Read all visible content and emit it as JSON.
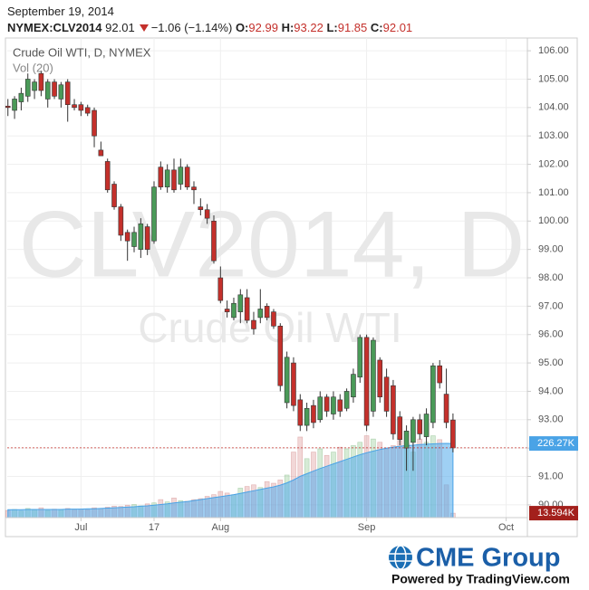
{
  "chart_data": {
    "type": "candlestick",
    "title": "Crude Oil WTI, D, NYMEX",
    "date": "September 19, 2014",
    "symbol": "NYMEX:CLV2014",
    "change_text": "−1.06 (−1.14%)",
    "ohlc_labels": [
      "O:",
      "H:",
      "L:",
      "C:"
    ],
    "watermark": "CLV2014, D",
    "watermark_subtitle": "Crude Oil WTI",
    "x": [
      0,
      1,
      2,
      3,
      4,
      5,
      6,
      7,
      8,
      9,
      10,
      11,
      12,
      13,
      14,
      15,
      16,
      17,
      18,
      19,
      20,
      21,
      22,
      23,
      24,
      25,
      26,
      27,
      28,
      29,
      30,
      31,
      32,
      33,
      34,
      35,
      36,
      37,
      38,
      39,
      40,
      41,
      42,
      43,
      44,
      45,
      46,
      47,
      48,
      49,
      50,
      51,
      52,
      53,
      54,
      55,
      56,
      57,
      58,
      59,
      60,
      61,
      62,
      63,
      64,
      65,
      66,
      67
    ],
    "open": [
      104.05,
      103.9,
      104.2,
      104.4,
      104.6,
      105.2,
      104.3,
      104.9,
      104.3,
      104.9,
      104.1,
      104.1,
      104.0,
      103.9,
      102.5,
      102.1,
      101.3,
      100.5,
      99.6,
      99.1,
      99.0,
      99.8,
      99.3,
      101.9,
      101.2,
      101.8,
      101.3,
      101.9,
      101.2,
      100.5,
      100.4,
      100.0,
      98.0,
      96.9,
      96.6,
      96.8,
      97.3,
      96.5,
      96.6,
      97.0,
      96.8,
      96.3,
      93.6,
      95.0,
      93.7,
      92.8,
      93.5,
      93.0,
      93.8,
      93.2,
      93.7,
      93.4,
      93.8,
      94.5,
      95.9,
      93.3,
      95.1,
      94.5,
      94.2,
      93.1,
      92.0,
      92.2,
      93.0,
      92.4,
      92.9,
      94.9,
      93.9,
      92.99
    ],
    "high": [
      104.3,
      104.4,
      104.7,
      105.2,
      105.0,
      105.3,
      105.0,
      105.0,
      104.9,
      105.0,
      104.3,
      104.2,
      104.1,
      104.0,
      102.8,
      102.2,
      101.4,
      100.6,
      99.7,
      99.8,
      100.1,
      99.9,
      101.4,
      102.1,
      102.0,
      102.2,
      102.2,
      102.0,
      101.4,
      100.8,
      100.6,
      100.2,
      98.4,
      97.2,
      97.3,
      97.6,
      97.6,
      96.8,
      97.6,
      97.1,
      96.9,
      96.4,
      95.4,
      95.2,
      93.9,
      93.6,
      93.7,
      94.0,
      93.9,
      94.0,
      93.9,
      94.1,
      94.8,
      96.0,
      96.0,
      95.9,
      95.2,
      94.8,
      94.4,
      93.3,
      92.8,
      93.1,
      93.2,
      93.4,
      95.0,
      95.1,
      94.8,
      93.22
    ],
    "low": [
      103.7,
      103.6,
      103.9,
      104.2,
      104.3,
      104.4,
      104.0,
      104.3,
      104.0,
      103.5,
      103.9,
      103.7,
      103.7,
      102.6,
      102.3,
      101.0,
      100.4,
      99.3,
      98.6,
      98.9,
      98.7,
      98.8,
      99.2,
      101.1,
      101.0,
      101.0,
      101.1,
      101.1,
      100.6,
      100.2,
      99.9,
      98.5,
      97.1,
      96.6,
      96.5,
      96.4,
      96.4,
      96.0,
      96.4,
      96.5,
      96.2,
      94.0,
      93.4,
      93.3,
      92.6,
      92.6,
      92.7,
      92.9,
      93.1,
      93.0,
      93.1,
      93.3,
      93.6,
      94.3,
      92.6,
      93.1,
      93.6,
      93.1,
      92.3,
      92.1,
      91.2,
      91.2,
      92.3,
      92.1,
      92.7,
      94.1,
      92.7,
      91.85
    ],
    "close": [
      104.0,
      104.3,
      104.5,
      105.0,
      104.9,
      104.6,
      104.9,
      104.4,
      104.8,
      104.1,
      104.0,
      103.9,
      103.8,
      103.0,
      102.3,
      101.1,
      100.5,
      99.5,
      99.3,
      99.6,
      99.9,
      99.0,
      101.2,
      101.2,
      101.8,
      101.1,
      101.9,
      101.2,
      101.1,
      100.4,
      100.1,
      98.6,
      97.2,
      96.8,
      97.1,
      97.4,
      96.5,
      96.2,
      96.9,
      96.6,
      96.3,
      94.2,
      95.2,
      93.5,
      92.8,
      93.4,
      92.9,
      93.8,
      93.3,
      93.8,
      93.3,
      94.0,
      94.6,
      95.9,
      92.8,
      95.8,
      93.8,
      93.3,
      92.5,
      92.3,
      92.6,
      93.0,
      92.5,
      93.2,
      94.9,
      94.3,
      92.9,
      92.01
    ],
    "up_color": "#4a9a58",
    "down_color": "#c4302b",
    "xlim": [
      -0.1,
      78.2
    ],
    "xticks": [
      {
        "value": 11,
        "label": "Jul"
      },
      {
        "value": 22,
        "label": "17"
      },
      {
        "value": 32,
        "label": "Aug"
      },
      {
        "value": 54,
        "label": "Sep"
      },
      {
        "value": 75,
        "label": "Oct"
      }
    ],
    "ylim": [
      89.55,
      106.45
    ],
    "yticks": [
      {
        "value": 90,
        "label": "90.00"
      },
      {
        "value": 91,
        "label": "91.00"
      },
      {
        "value": 92,
        "label": "92.00"
      },
      {
        "value": 93,
        "label": "93.00"
      },
      {
        "value": 94,
        "label": "94.00"
      },
      {
        "value": 95,
        "label": "95.00"
      },
      {
        "value": 96,
        "label": "96.00"
      },
      {
        "value": 97,
        "label": "97.00"
      },
      {
        "value": 98,
        "label": "98.00"
      },
      {
        "value": 99,
        "label": "99.00"
      },
      {
        "value": 100,
        "label": "100.00"
      },
      {
        "value": 101,
        "label": "101.00"
      },
      {
        "value": 102,
        "label": "102.00"
      },
      {
        "value": 103,
        "label": "103.00"
      },
      {
        "value": 104,
        "label": "104.00"
      },
      {
        "value": 105,
        "label": "105.00"
      },
      {
        "value": 106,
        "label": "106.00"
      }
    ],
    "grid": true,
    "volume": {
      "name": "Vol (20)",
      "ylim": [
        0,
        1464
      ],
      "values": [
        22,
        25,
        20,
        28,
        24,
        30,
        22,
        26,
        24,
        28,
        25,
        26,
        24,
        30,
        28,
        32,
        35,
        34,
        38,
        40,
        36,
        42,
        45,
        55,
        48,
        60,
        52,
        50,
        55,
        58,
        65,
        70,
        80,
        75,
        70,
        90,
        95,
        100,
        92,
        110,
        105,
        115,
        130,
        200,
        246,
        180,
        200,
        210,
        190,
        200,
        215,
        210,
        220,
        230,
        250,
        240,
        230,
        210,
        220,
        235,
        210,
        200,
        240,
        230,
        250,
        238,
        100,
        13.594
      ],
      "value_labels": [
        null,
        null,
        null,
        null,
        null,
        null,
        null,
        null,
        null,
        null,
        null,
        null,
        null,
        null,
        null,
        null,
        null,
        null,
        null,
        null,
        null,
        null,
        null,
        null,
        null,
        null,
        null,
        null,
        null,
        null,
        null,
        null,
        null,
        null,
        null,
        null,
        null,
        null,
        null,
        null,
        null,
        null,
        null,
        null,
        null,
        null,
        null,
        null,
        null,
        null,
        null,
        null,
        null,
        null,
        null,
        null,
        null,
        null,
        null,
        null,
        null,
        null,
        null,
        null,
        null,
        null,
        null,
        "13.594K"
      ],
      "ma_values": [
        24,
        24,
        24,
        25,
        25,
        25,
        25,
        25,
        25,
        26,
        26,
        26,
        27,
        27,
        28,
        29,
        30,
        31,
        32,
        33,
        35,
        36,
        38,
        40,
        42,
        45,
        47,
        49,
        52,
        55,
        58,
        61,
        64,
        67,
        70,
        74,
        78,
        82,
        86,
        90,
        94,
        99,
        106,
        115,
        126,
        134,
        142,
        150,
        157,
        164,
        171,
        178,
        185,
        192,
        198,
        203,
        208,
        212,
        215,
        218,
        220,
        221,
        223,
        224,
        225,
        226,
        226.5,
        226.27
      ],
      "ma_value_labels": [
        null,
        null,
        null,
        null,
        null,
        null,
        null,
        null,
        null,
        null,
        null,
        null,
        null,
        null,
        null,
        null,
        null,
        null,
        null,
        null,
        null,
        null,
        null,
        null,
        null,
        null,
        null,
        null,
        null,
        null,
        null,
        null,
        null,
        null,
        null,
        null,
        null,
        null,
        null,
        null,
        null,
        null,
        null,
        null,
        null,
        null,
        null,
        null,
        null,
        null,
        null,
        null,
        null,
        null,
        null,
        null,
        null,
        null,
        null,
        null,
        null,
        null,
        null,
        null,
        null,
        null,
        null,
        "226.27K"
      ]
    }
  },
  "footer": {
    "brand": "CME Group",
    "credit": "Powered by TradingView.com"
  }
}
